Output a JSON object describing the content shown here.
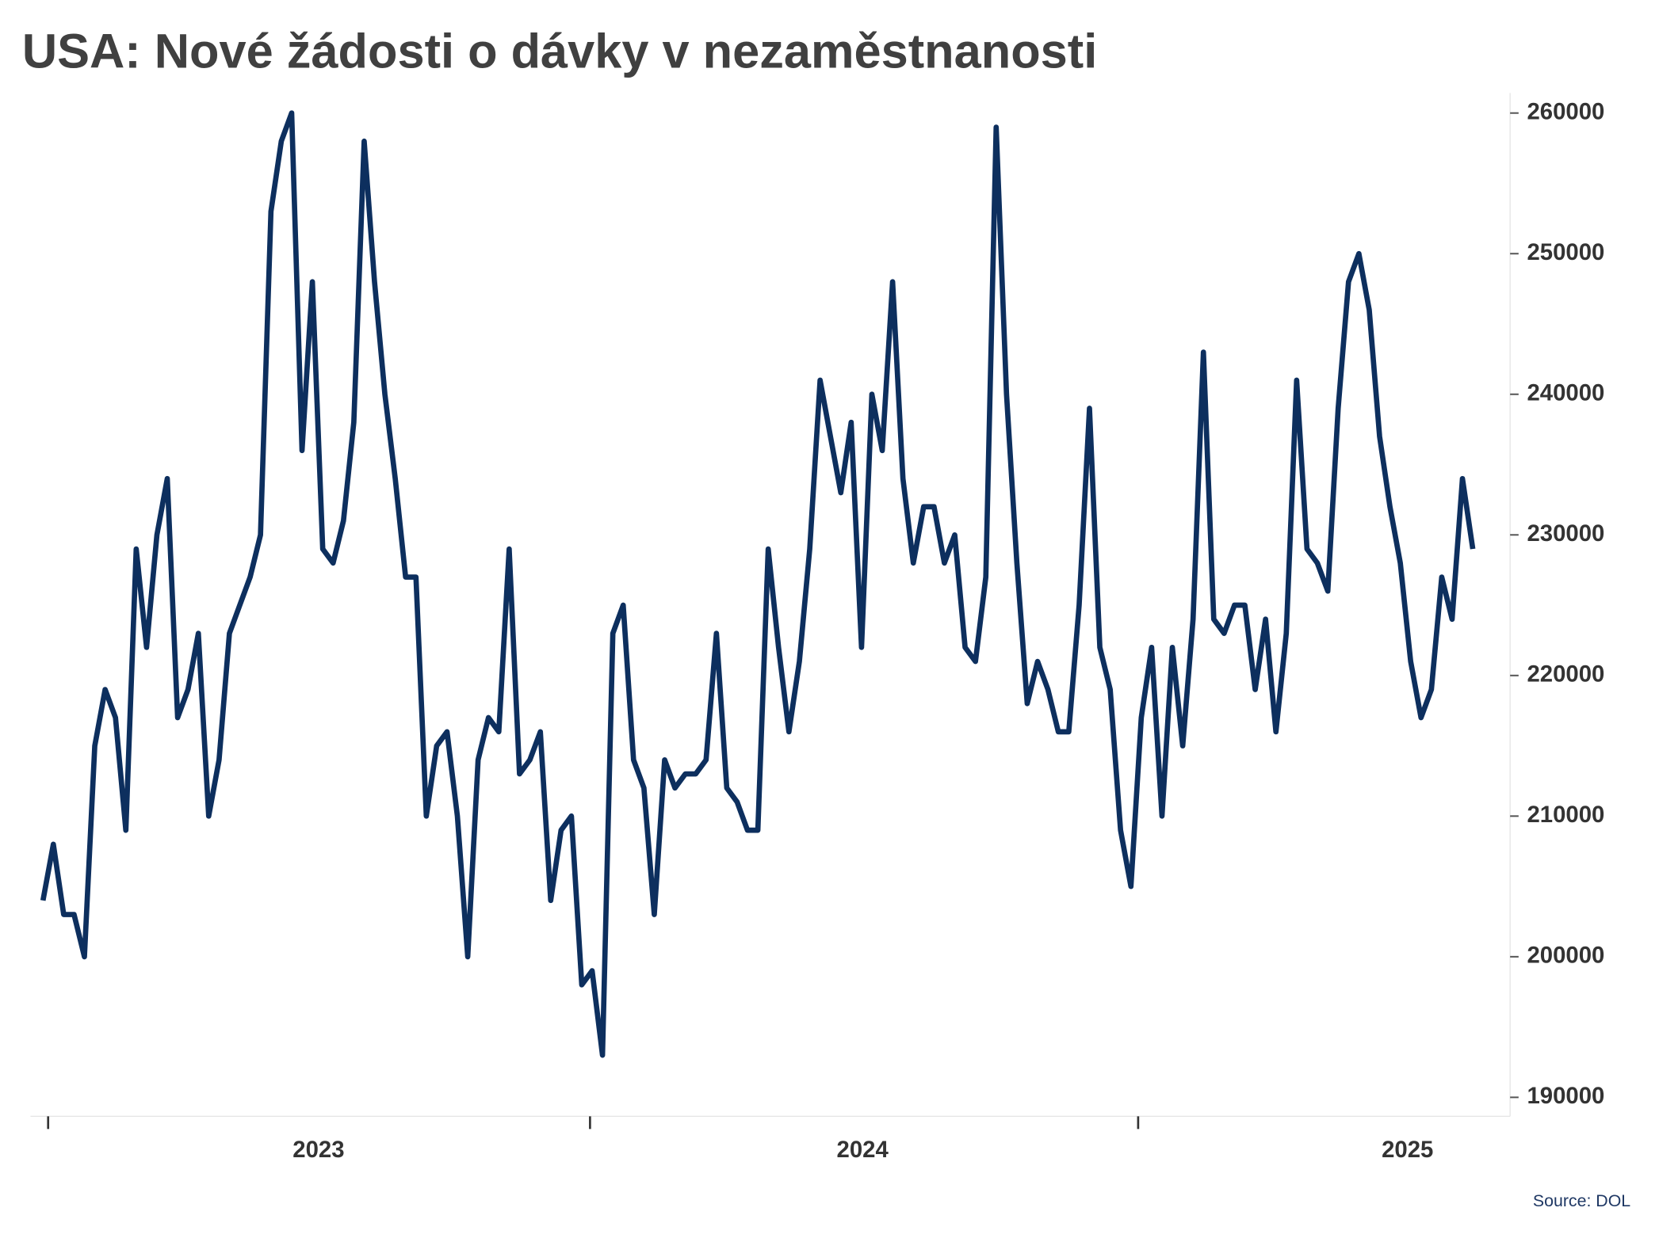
{
  "chart_data": {
    "type": "line",
    "title": "USA: Nové žádosti o dávky v nezaměstnanosti",
    "source": "Source: DOL",
    "series": [
      {
        "color": "#0d2f5e",
        "values": [
          204000,
          208000,
          203000,
          203000,
          200000,
          215000,
          219000,
          217000,
          209000,
          229000,
          222000,
          230000,
          234000,
          217000,
          219000,
          223000,
          210000,
          214000,
          223000,
          225000,
          227000,
          230000,
          253000,
          258000,
          260000,
          236000,
          248000,
          229000,
          228000,
          231000,
          238000,
          258000,
          248000,
          240000,
          234000,
          227000,
          227000,
          210000,
          215000,
          216000,
          210000,
          200000,
          214000,
          217000,
          216000,
          229000,
          213000,
          214000,
          216000,
          204000,
          209000,
          210000,
          198000,
          199000,
          193000,
          223000,
          225000,
          214000,
          212000,
          203000,
          214000,
          212000,
          213000,
          213000,
          214000,
          223000,
          212000,
          211000,
          209000,
          209000,
          229000,
          222000,
          216000,
          221000,
          229000,
          241000,
          237000,
          233000,
          238000,
          222000,
          240000,
          236000,
          248000,
          234000,
          228000,
          232000,
          232000,
          228000,
          230000,
          222000,
          221000,
          227000,
          259000,
          240000,
          228000,
          218000,
          221000,
          219000,
          216000,
          216000,
          225000,
          239000,
          222000,
          219000,
          209000,
          205000,
          217000,
          222000,
          210000,
          222000,
          215000,
          224000,
          243000,
          224000,
          223000,
          225000,
          225000,
          219000,
          224000,
          216000,
          223000,
          241000,
          229000,
          228000,
          226000,
          239000,
          248000,
          250000,
          246000,
          237000,
          232000,
          228000,
          221000,
          217000,
          219000,
          227000,
          224000,
          234000,
          229000
        ]
      }
    ],
    "xlim": [
      -1.2,
      141.6
    ],
    "xticks": [
      {
        "value": 26.6,
        "label": "2023"
      },
      {
        "value": 79.1,
        "label": "2024"
      },
      {
        "value": 131.7,
        "label": "2025"
      }
    ],
    "xminorticks": [
      0.5,
      52.8,
      105.7
    ],
    "ylim": [
      188650,
      261430
    ],
    "yticks": [
      190000,
      200000,
      210000,
      220000,
      230000,
      240000,
      250000,
      260000
    ],
    "yaxis_side": "right"
  }
}
